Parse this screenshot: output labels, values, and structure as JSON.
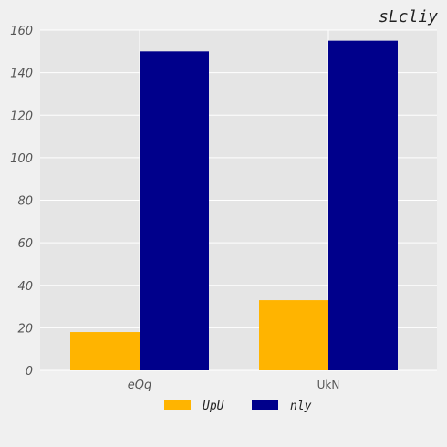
{
  "chart_data": {
    "type": "bar",
    "title": "sLcliy",
    "xlabel": "",
    "ylabel": "",
    "categories": [
      "eQq",
      "UkN"
    ],
    "series": [
      {
        "name": "UpU",
        "values": [
          18,
          33
        ],
        "color": "#FFB400"
      },
      {
        "name": "nly",
        "values": [
          150,
          155
        ],
        "color": "#00008B"
      }
    ],
    "ylim": [
      0,
      160
    ],
    "yticks": [
      0,
      20,
      40,
      60,
      80,
      100,
      120,
      140,
      160
    ],
    "grid": true,
    "legend_position": "bottom-center",
    "plot_background": "#e5e5e5",
    "grid_color": "#ffffff"
  }
}
